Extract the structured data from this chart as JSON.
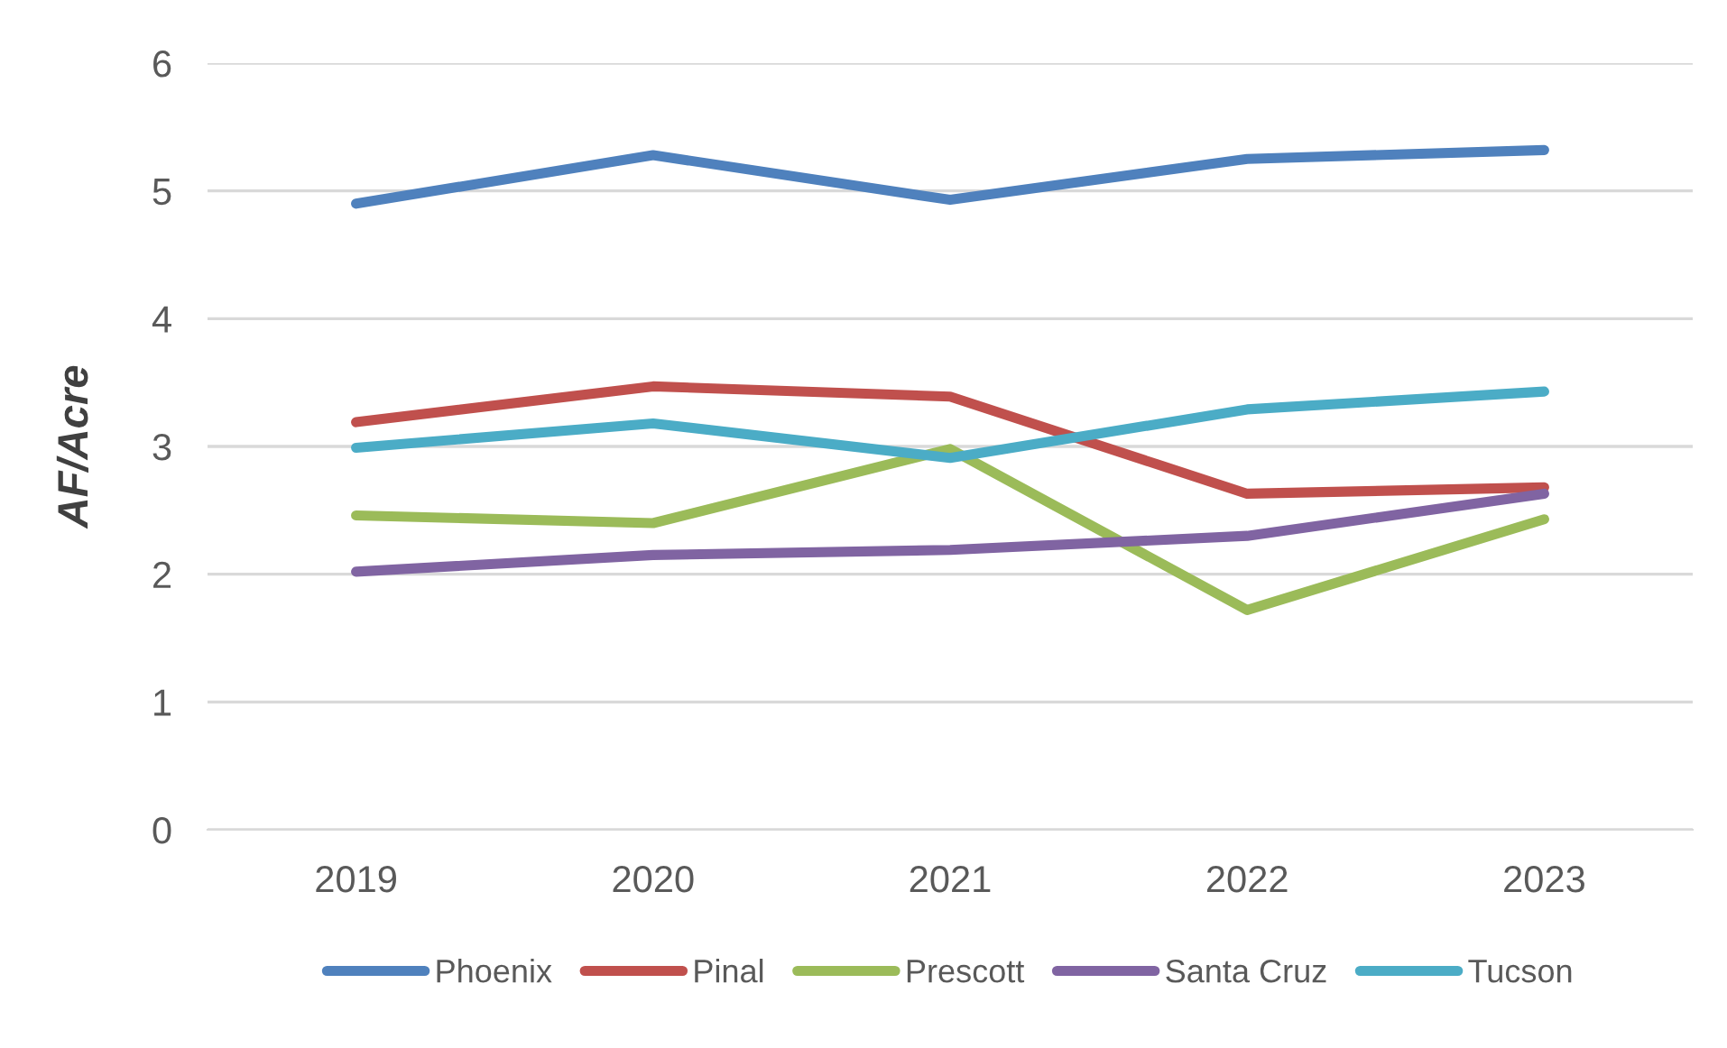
{
  "chart_data": {
    "type": "line",
    "ylabel": "AF/Acre",
    "categories": [
      "2019",
      "2020",
      "2021",
      "2022",
      "2023"
    ],
    "series": [
      {
        "name": "Phoenix",
        "color": "#4f81bd",
        "values": [
          4.9,
          5.28,
          4.93,
          5.25,
          5.32
        ]
      },
      {
        "name": "Pinal",
        "color": "#c0504d",
        "values": [
          3.19,
          3.47,
          3.39,
          2.63,
          2.68
        ]
      },
      {
        "name": "Prescott",
        "color": "#9bbb59",
        "values": [
          2.46,
          2.4,
          2.98,
          1.72,
          2.43
        ]
      },
      {
        "name": "Santa Cruz",
        "color": "#8064a2",
        "values": [
          2.02,
          2.15,
          2.19,
          2.3,
          2.63
        ]
      },
      {
        "name": "Tucson",
        "color": "#4bacc6",
        "values": [
          2.99,
          3.18,
          2.91,
          3.29,
          3.43
        ]
      }
    ],
    "ylim": [
      0,
      6
    ],
    "yticks": [
      0,
      1,
      2,
      3,
      4,
      5,
      6
    ],
    "grid": "y",
    "legend": "bottom",
    "marker": "none",
    "line_style": "solid"
  }
}
